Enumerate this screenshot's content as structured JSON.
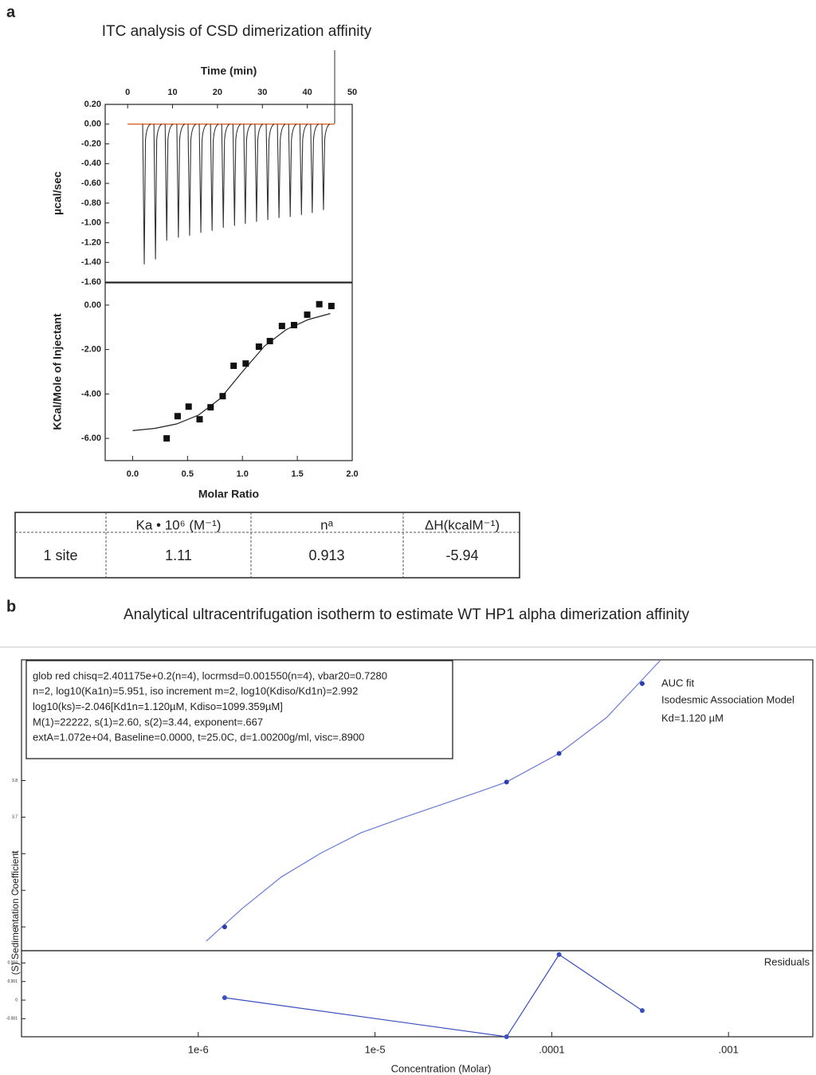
{
  "panel_a": {
    "label": "a",
    "title": "ITC analysis of CSD dimerization affinity"
  },
  "panel_b": {
    "label": "b",
    "title": "Analytical ultracentrifugation isotherm to estimate WT HP1 alpha dimerization affinity"
  },
  "table": {
    "header": [
      "Ka • 10⁶ (M⁻¹)",
      "nᵃ",
      "ΔH(kcalM⁻¹)"
    ],
    "rows": [
      [
        "1 site",
        "1.11",
        "0.913",
        "-5.94"
      ]
    ]
  },
  "chart_data": [
    {
      "type": "spike",
      "xlabel": "Time (min)",
      "ylabel": "µcal/sec",
      "xaxis": "top",
      "xlim": [
        -5,
        50
      ],
      "xticks": [
        0,
        10,
        20,
        30,
        40,
        50
      ],
      "ylim": [
        -1.6,
        0.2
      ],
      "yticks": [
        {
          "value": 0.2,
          "label": "0.20"
        },
        {
          "value": 0,
          "label": "0.00"
        },
        {
          "value": -0.2,
          "label": "-0.20"
        },
        {
          "value": -0.4,
          "label": "-0.40"
        },
        {
          "value": -0.6,
          "label": "-0.60"
        },
        {
          "value": -0.8,
          "label": "-0.80"
        },
        {
          "value": -1.0,
          "label": "-1.00"
        },
        {
          "value": -1.2,
          "label": "-1.20"
        },
        {
          "value": -1.4,
          "label": "-1.40"
        },
        {
          "value": -1.6,
          "label": "-1.60"
        }
      ],
      "x": [
        3.7,
        6.2,
        8.7,
        11.3,
        13.8,
        16.3,
        18.8,
        21.3,
        23.8,
        26.2,
        28.7,
        31.2,
        33.7,
        36.2,
        38.7,
        41.1,
        43.6
      ],
      "values": [
        -1.42,
        -1.37,
        -1.18,
        -1.15,
        -1.13,
        -1.1,
        -1.08,
        -1.05,
        -1.03,
        -1.01,
        -0.99,
        -0.97,
        -0.95,
        -0.94,
        -0.92,
        -0.9,
        -0.87
      ],
      "color": "#333333",
      "baseline": 0,
      "baseline_color": "#e0703c"
    },
    {
      "type": "scatter",
      "xlabel": "Molar Ratio",
      "ylabel": "KCal/Mole of Injectant",
      "marker": "square",
      "xlim": [
        -0.25,
        2.0
      ],
      "xticks": [
        {
          "value": 0,
          "label": "0.0"
        },
        {
          "value": 0.5,
          "label": "0.5"
        },
        {
          "value": 1,
          "label": "1.0"
        },
        {
          "value": 1.5,
          "label": "1.5"
        },
        {
          "value": 2,
          "label": "2.0"
        }
      ],
      "ylim": [
        -7,
        1
      ],
      "yticks": [
        {
          "value": 0,
          "label": "0.00"
        },
        {
          "value": -2,
          "label": "-2.00"
        },
        {
          "value": -4,
          "label": "-4.00"
        },
        {
          "value": -6,
          "label": "-6.00"
        }
      ],
      "x": [
        0.31,
        0.41,
        0.51,
        0.61,
        0.71,
        0.82,
        0.92,
        1.03,
        1.15,
        1.25,
        1.36,
        1.47,
        1.59,
        1.7,
        1.81
      ],
      "values": [
        -6.0,
        -5.0,
        -4.57,
        -5.14,
        -4.6,
        -4.1,
        -2.73,
        -2.63,
        -1.87,
        -1.62,
        -0.94,
        -0.9,
        -0.43,
        0.04,
        -0.04
      ],
      "color": "#111111",
      "fit": {
        "x": [
          0,
          0.2,
          0.4,
          0.6,
          0.8,
          1.0,
          1.2,
          1.4,
          1.6,
          1.8
        ],
        "values": [
          -5.65,
          -5.55,
          -5.35,
          -4.95,
          -4.2,
          -3.0,
          -1.85,
          -1.1,
          -0.65,
          -0.38
        ],
        "color": "#222222"
      }
    },
    {
      "type": "scatter",
      "ylabel": "(S) Sedimentation Coefficient",
      "marker": "circle",
      "xscale": "log",
      "xlim": [
        1e-07,
        0.003
      ],
      "ylim": [
        3.335,
        4.13
      ],
      "yticks": [
        3.4,
        3.5,
        3.6,
        3.7,
        3.8
      ],
      "x": [
        1.41e-06,
        5.55e-05,
        0.00011,
        0.000325
      ],
      "values": [
        3.4,
        3.796,
        3.874,
        4.065
      ],
      "color": "#2a3fb0",
      "fit": {
        "x": [
          1.11e-06,
          1.77e-06,
          2.96e-06,
          4.96e-06,
          8.3e-06,
          1.39e-05,
          2.33e-05,
          3.91e-05,
          5.55e-05,
          0.00011,
          0.000204,
          0.000411
        ],
        "values": [
          3.361,
          3.45,
          3.537,
          3.602,
          3.657,
          3.696,
          3.733,
          3.77,
          3.796,
          3.874,
          3.972,
          4.128
        ],
        "color": "#6a7ad8"
      },
      "legend": [
        "AUC fit",
        "Isodesmic Association Model",
        "Kd=1.120  µM"
      ],
      "textbox": [
        "glob red chisq=2.401175e+0.2(n=4), locrmsd=0.001550(n=4), vbar20=0.7280",
        "n=2, log10(Ka1n)=5.951, iso increment m=2, log10(Kdiso/Kd1n)=2.992",
        "log10(ks)=-2.046[Kd1n=1.120µM, Kdiso=1099.359µM]",
        "M(1)=22222, s(1)=2.60, s(2)=3.44, exponent=.667",
        "extA=1.072e+04, Baseline=0.0000, t=25.0C, d=1.00200g/ml, visc=.8900"
      ]
    },
    {
      "type": "line",
      "label": "Residuals",
      "xlabel": "Concentration (Molar)",
      "xscale": "log",
      "xlim": [
        1e-07,
        0.003
      ],
      "xticks": [
        {
          "value": 1e-06,
          "label": "1e-6"
        },
        {
          "value": 1e-05,
          "label": "1e-5"
        },
        {
          "value": 0.0001,
          "label": ".0001"
        },
        {
          "value": 0.001,
          "label": ".001"
        }
      ],
      "ylim": [
        -0.00197,
        0.00266
      ],
      "yticks": [
        0.002,
        0.001,
        0,
        -0.001
      ],
      "x": [
        1.41e-06,
        5.55e-05,
        0.00011,
        0.000325
      ],
      "values": [
        0.00013,
        -0.00197,
        0.00245,
        -0.00056
      ],
      "color": "#3a4fc0"
    }
  ]
}
